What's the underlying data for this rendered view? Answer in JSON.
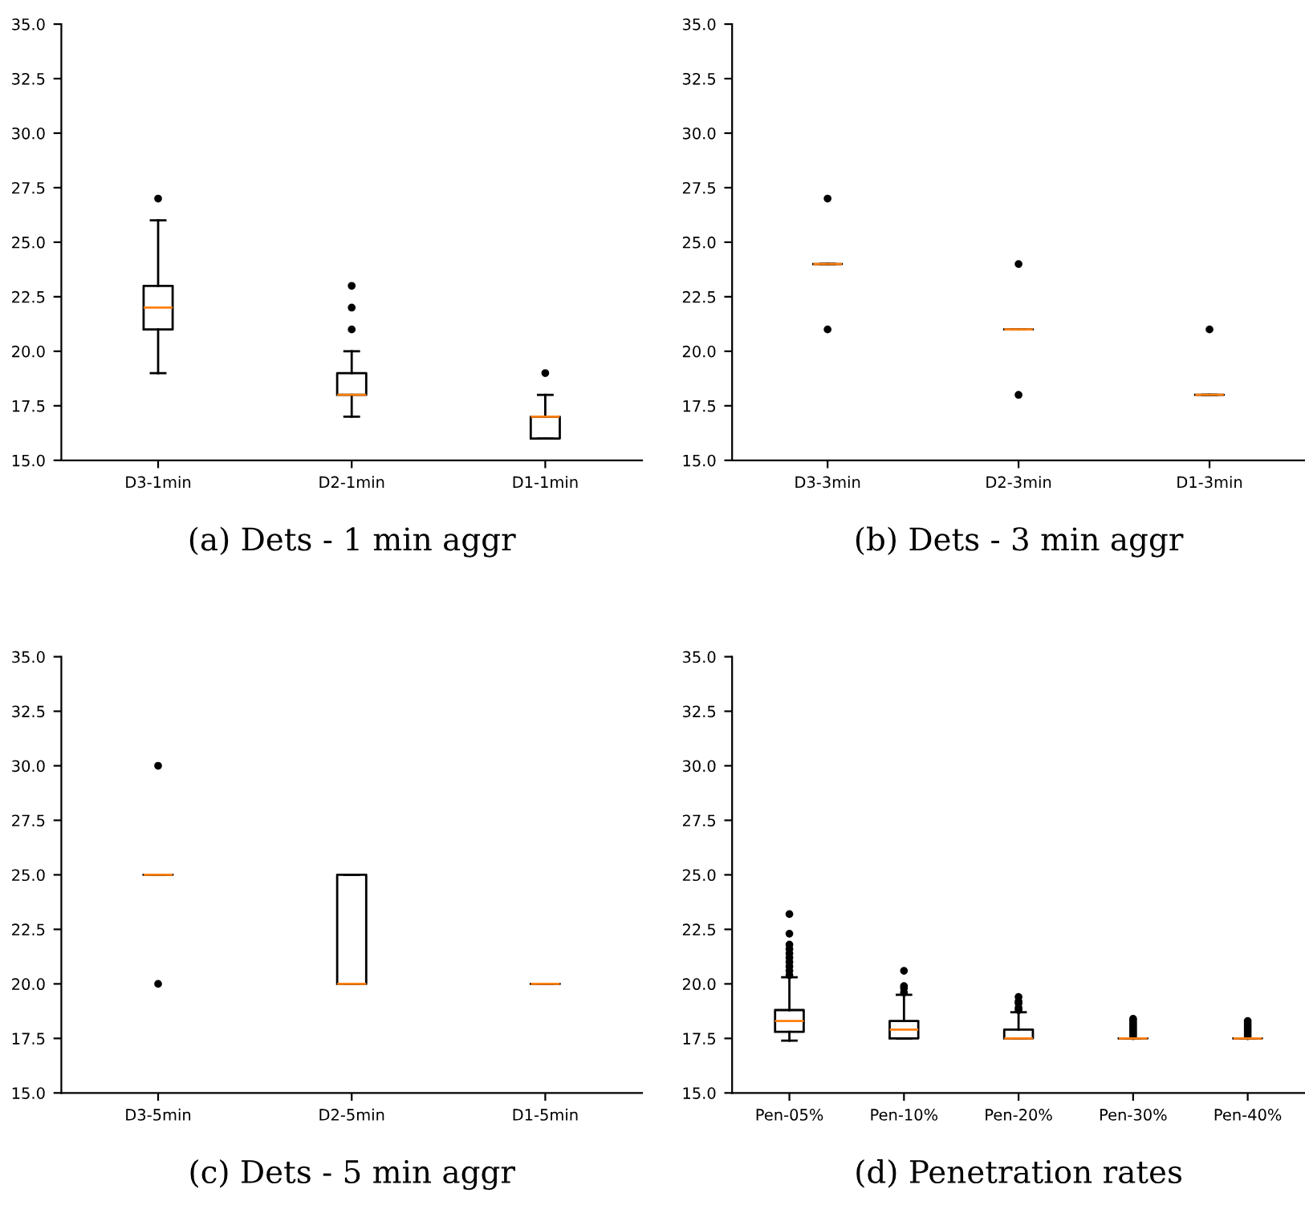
{
  "chart_data": [
    {
      "type": "box",
      "xlabel": "(a) Dets - 1 min aggr",
      "categories": [
        "D3-1min",
        "D2-1min",
        "D1-1min"
      ],
      "ylim": [
        15,
        35
      ],
      "yticks": [
        {
          "value": 15,
          "label": "15.0"
        },
        {
          "value": 17.5,
          "label": "17.5"
        },
        {
          "value": 20,
          "label": "20.0"
        },
        {
          "value": 22.5,
          "label": "22.5"
        },
        {
          "value": 25,
          "label": "25.0"
        },
        {
          "value": 27.5,
          "label": "27.5"
        },
        {
          "value": 30,
          "label": "30.0"
        },
        {
          "value": 32.5,
          "label": "32.5"
        },
        {
          "value": 35,
          "label": "35.0"
        }
      ],
      "boxes": [
        {
          "low": 19,
          "q1": 21,
          "median": 22,
          "q3": 23,
          "high": 26,
          "outliers": [
            27
          ]
        },
        {
          "low": 17,
          "q1": 18,
          "median": 18,
          "q3": 19,
          "high": 20,
          "outliers": [
            21,
            22,
            23
          ]
        },
        {
          "low": 16,
          "q1": 16,
          "median": 17,
          "q3": 17,
          "high": 18,
          "outliers": [
            19
          ]
        }
      ]
    },
    {
      "type": "box",
      "xlabel": "(b) Dets - 3 min aggr",
      "categories": [
        "D3-3min",
        "D2-3min",
        "D1-3min"
      ],
      "ylim": [
        15,
        35
      ],
      "yticks": [
        {
          "value": 15,
          "label": "15.0"
        },
        {
          "value": 17.5,
          "label": "17.5"
        },
        {
          "value": 20,
          "label": "20.0"
        },
        {
          "value": 22.5,
          "label": "22.5"
        },
        {
          "value": 25,
          "label": "25.0"
        },
        {
          "value": 27.5,
          "label": "27.5"
        },
        {
          "value": 30,
          "label": "30.0"
        },
        {
          "value": 32.5,
          "label": "32.5"
        },
        {
          "value": 35,
          "label": "35.0"
        }
      ],
      "boxes": [
        {
          "low": 24,
          "q1": 24,
          "median": 24,
          "q3": 24,
          "high": 24,
          "outliers": [
            21,
            27
          ]
        },
        {
          "low": 21,
          "q1": 21,
          "median": 21,
          "q3": 21,
          "high": 21,
          "outliers": [
            18,
            24
          ]
        },
        {
          "low": 18,
          "q1": 18,
          "median": 18,
          "q3": 18,
          "high": 18,
          "outliers": [
            21
          ]
        }
      ]
    },
    {
      "type": "box",
      "xlabel": "(c) Dets - 5 min aggr",
      "categories": [
        "D3-5min",
        "D2-5min",
        "D1-5min"
      ],
      "ylim": [
        15,
        35
      ],
      "yticks": [
        {
          "value": 15,
          "label": "15.0"
        },
        {
          "value": 17.5,
          "label": "17.5"
        },
        {
          "value": 20,
          "label": "20.0"
        },
        {
          "value": 22.5,
          "label": "22.5"
        },
        {
          "value": 25,
          "label": "25.0"
        },
        {
          "value": 27.5,
          "label": "27.5"
        },
        {
          "value": 30,
          "label": "30.0"
        },
        {
          "value": 32.5,
          "label": "32.5"
        },
        {
          "value": 35,
          "label": "35.0"
        }
      ],
      "boxes": [
        {
          "low": 25,
          "q1": 25,
          "median": 25,
          "q3": 25,
          "high": 25,
          "outliers": [
            20,
            30
          ]
        },
        {
          "low": 20,
          "q1": 20,
          "median": 20,
          "q3": 25,
          "high": 25
        },
        {
          "low": 20,
          "q1": 20,
          "median": 20,
          "q3": 20,
          "high": 20
        }
      ]
    },
    {
      "type": "box",
      "xlabel": "(d) Penetration rates",
      "categories": [
        "Pen-05%",
        "Pen-10%",
        "Pen-20%",
        "Pen-30%",
        "Pen-40%"
      ],
      "ylim": [
        15,
        35
      ],
      "yticks": [
        {
          "value": 15,
          "label": "15.0"
        },
        {
          "value": 17.5,
          "label": "17.5"
        },
        {
          "value": 20,
          "label": "20.0"
        },
        {
          "value": 22.5,
          "label": "22.5"
        },
        {
          "value": 25,
          "label": "25.0"
        },
        {
          "value": 27.5,
          "label": "27.5"
        },
        {
          "value": 30,
          "label": "30.0"
        },
        {
          "value": 32.5,
          "label": "32.5"
        },
        {
          "value": 35,
          "label": "35.0"
        }
      ],
      "boxes": [
        {
          "low": 17.4,
          "q1": 17.8,
          "median": 18.3,
          "q3": 18.8,
          "high": 20.3,
          "outliers": [
            20.4,
            20.6,
            20.8,
            21.0,
            21.2,
            21.4,
            21.6,
            21.8,
            22.3,
            23.2
          ]
        },
        {
          "low": 17.5,
          "q1": 17.5,
          "median": 17.9,
          "q3": 18.3,
          "high": 19.5,
          "outliers": [
            19.6,
            19.8,
            19.9,
            20.6
          ]
        },
        {
          "low": 17.5,
          "q1": 17.5,
          "median": 17.5,
          "q3": 17.9,
          "high": 18.7,
          "outliers": [
            18.8,
            18.9,
            19.1,
            19.2,
            19.4
          ]
        },
        {
          "low": 17.5,
          "q1": 17.5,
          "median": 17.5,
          "q3": 17.5,
          "high": 17.5,
          "outliers": [
            17.6,
            17.7,
            17.8,
            17.9,
            18.0,
            18.1,
            18.2,
            18.3,
            18.4
          ]
        },
        {
          "low": 17.5,
          "q1": 17.5,
          "median": 17.5,
          "q3": 17.5,
          "high": 17.5,
          "outliers": [
            17.6,
            17.7,
            17.8,
            17.9,
            18.0,
            18.1,
            18.2,
            18.3
          ]
        }
      ]
    }
  ]
}
